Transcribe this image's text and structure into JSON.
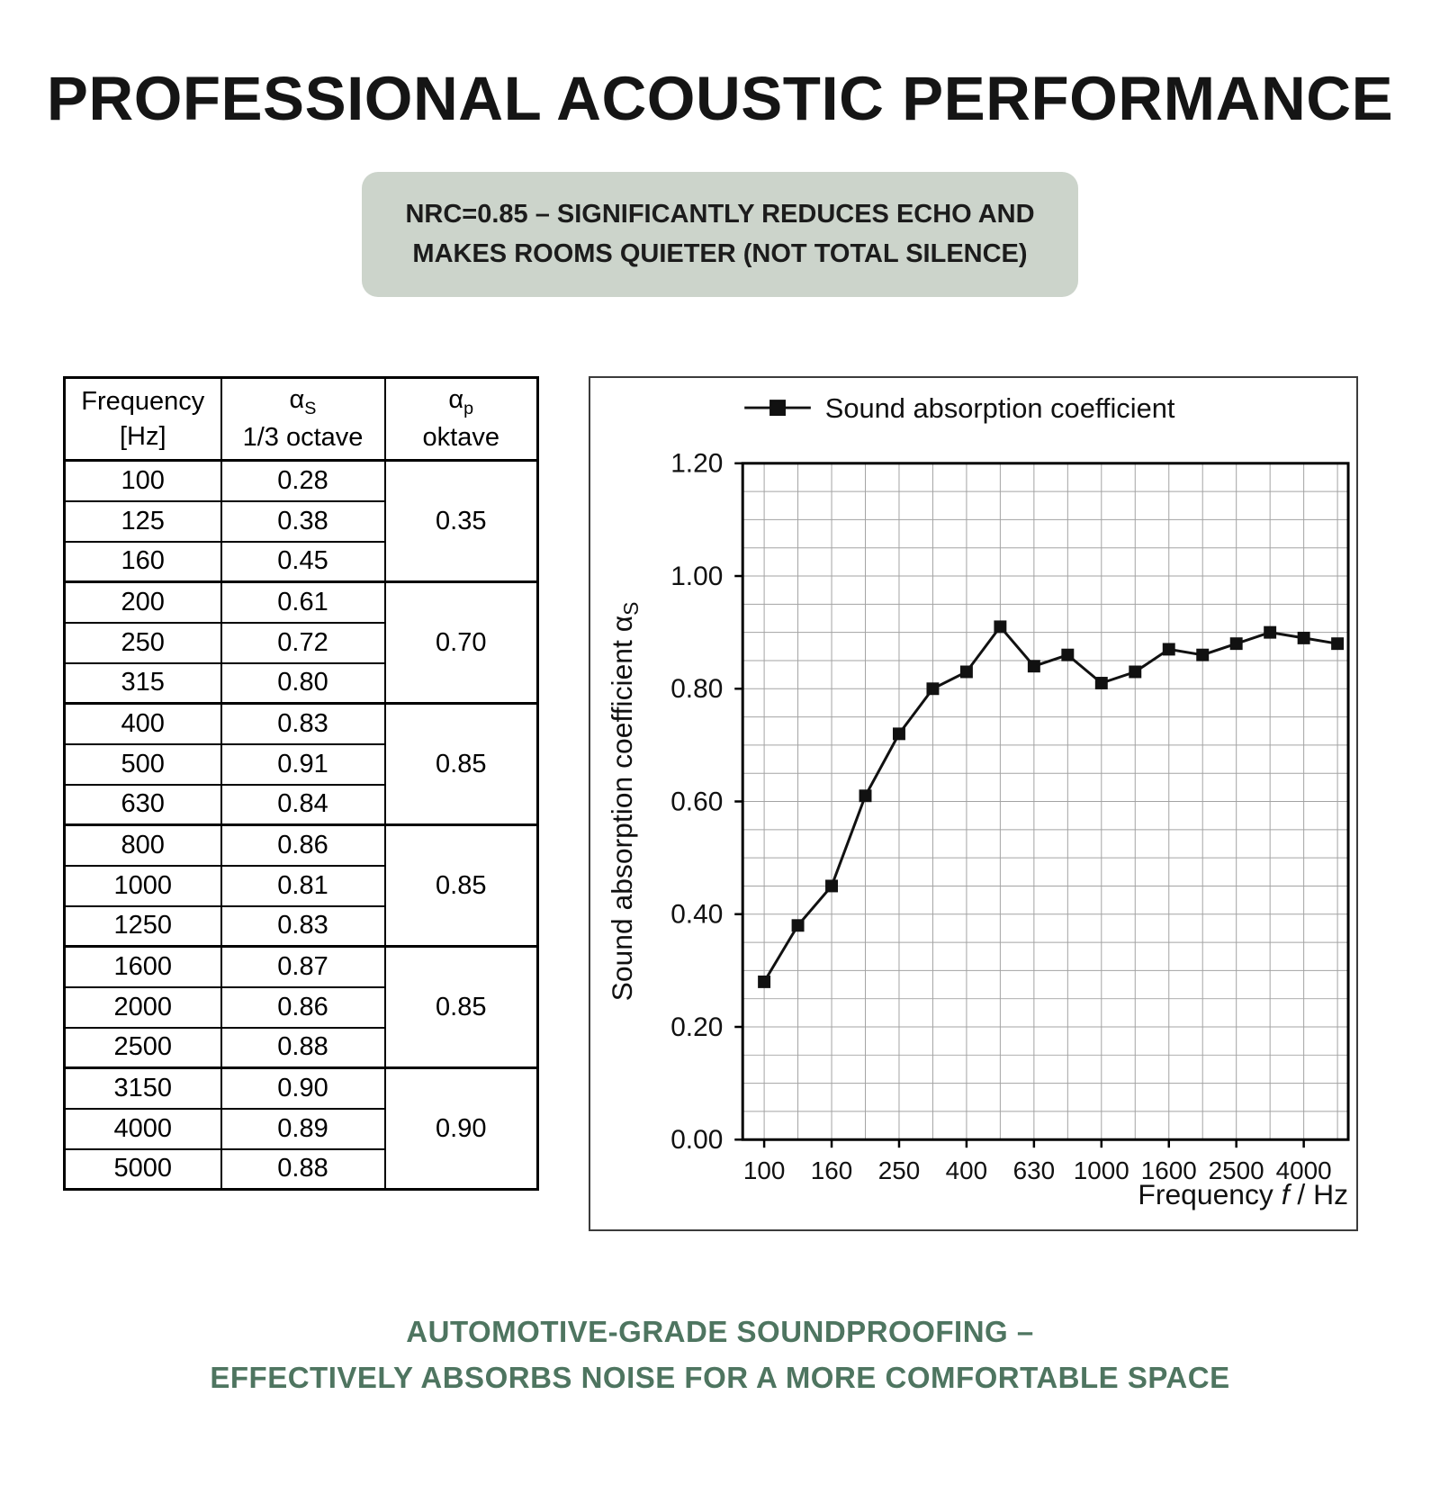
{
  "page": {
    "title": "PROFESSIONAL ACOUSTIC PERFORMANCE",
    "badge_line1": "NRC=0.85 – SIGNIFICANTLY REDUCES ECHO AND",
    "badge_line2": "MAKES ROOMS QUIETER (NOT TOTAL SILENCE)",
    "footer_line1": "AUTOMOTIVE-GRADE SOUNDPROOFING –",
    "footer_line2": "EFFECTIVELY ABSORBS NOISE FOR A MORE COMFORTABLE SPACE"
  },
  "colors": {
    "badge_background": "#ccd4cb",
    "footer_green": "#4e7560",
    "series_black": "#111111"
  },
  "table": {
    "headers": {
      "col1_line1": "Frequency",
      "col1_line2": "[Hz]",
      "col2_symbol": "α",
      "col2_sub": "S",
      "col2_line2": "1/3 octave",
      "col3_symbol": "α",
      "col3_sub": "p",
      "col3_line2": "oktave"
    },
    "rows": [
      {
        "freq": "100",
        "alpha_s": "0.28"
      },
      {
        "freq": "125",
        "alpha_s": "0.38"
      },
      {
        "freq": "160",
        "alpha_s": "0.45"
      },
      {
        "freq": "200",
        "alpha_s": "0.61"
      },
      {
        "freq": "250",
        "alpha_s": "0.72"
      },
      {
        "freq": "315",
        "alpha_s": "0.80"
      },
      {
        "freq": "400",
        "alpha_s": "0.83"
      },
      {
        "freq": "500",
        "alpha_s": "0.91"
      },
      {
        "freq": "630",
        "alpha_s": "0.84"
      },
      {
        "freq": "800",
        "alpha_s": "0.86"
      },
      {
        "freq": "1000",
        "alpha_s": "0.81"
      },
      {
        "freq": "1250",
        "alpha_s": "0.83"
      },
      {
        "freq": "1600",
        "alpha_s": "0.87"
      },
      {
        "freq": "2000",
        "alpha_s": "0.86"
      },
      {
        "freq": "2500",
        "alpha_s": "0.88"
      },
      {
        "freq": "3150",
        "alpha_s": "0.90"
      },
      {
        "freq": "4000",
        "alpha_s": "0.89"
      },
      {
        "freq": "5000",
        "alpha_s": "0.88"
      }
    ],
    "groups": [
      {
        "value": "0.35",
        "span": 3
      },
      {
        "value": "0.70",
        "span": 3
      },
      {
        "value": "0.85",
        "span": 3
      },
      {
        "value": "0.85",
        "span": 3
      },
      {
        "value": "0.85",
        "span": 3
      },
      {
        "value": "0.90",
        "span": 3
      }
    ]
  },
  "chart_data": {
    "type": "line",
    "legend": "Sound absorption coefficient",
    "legend_position": "top",
    "x": [
      100,
      125,
      160,
      200,
      250,
      315,
      400,
      500,
      630,
      800,
      1000,
      1250,
      1600,
      2000,
      2500,
      3150,
      4000,
      5000
    ],
    "values": [
      0.28,
      0.38,
      0.45,
      0.61,
      0.72,
      0.8,
      0.83,
      0.91,
      0.84,
      0.86,
      0.81,
      0.83,
      0.87,
      0.86,
      0.88,
      0.9,
      0.89,
      0.88
    ],
    "x_axis_scale": "log-third-octave",
    "grid": "on",
    "ylim": [
      0,
      1.2
    ],
    "ytick_labels": [
      "0.00",
      "0.20",
      "0.40",
      "0.60",
      "0.80",
      "1.00",
      "1.20"
    ],
    "xtick_labels": [
      "100",
      "160",
      "250",
      "400",
      "630",
      "1000",
      "1600",
      "2500",
      "4000"
    ],
    "ylabel": "Sound absorption coefficient αS",
    "ylabel_main": "Sound absorption coefficient α",
    "ylabel_sub": "S",
    "xlabel": "Frequency f / Hz",
    "xlabel_pre": "Frequency ",
    "xlabel_italic": "f",
    "xlabel_post": " / Hz"
  }
}
